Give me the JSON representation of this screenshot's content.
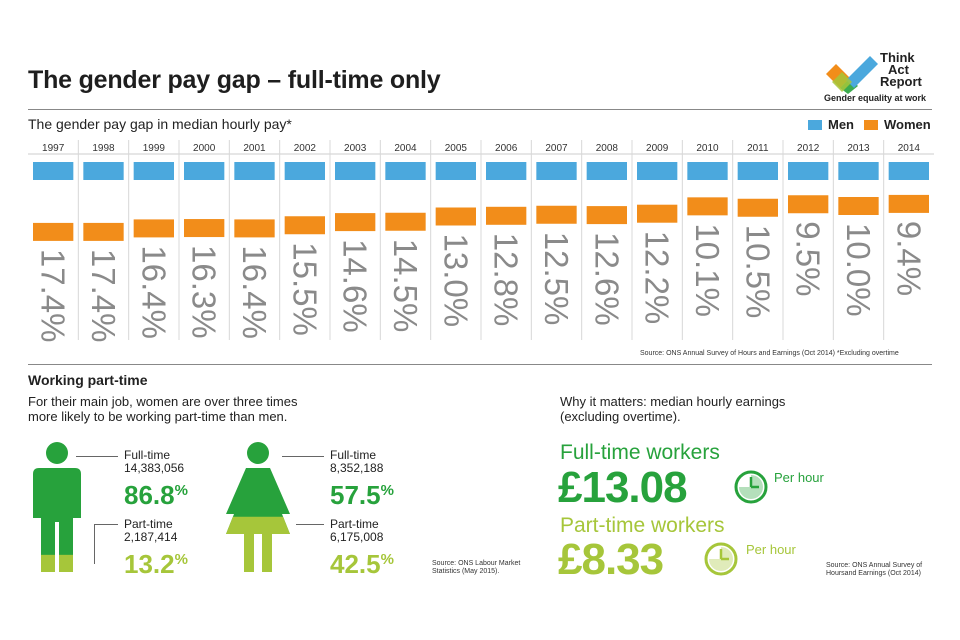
{
  "header": {
    "title": "The gender pay gap – full-time only",
    "logo_lines": [
      "Think",
      "Act",
      "Report"
    ],
    "logo_tagline": "Gender equality at work"
  },
  "colors": {
    "men": "#4ba8dd",
    "women": "#f28d1a",
    "green_dark": "#27a23c",
    "green_light": "#a6c63a",
    "gap_text": "#8a8a8a"
  },
  "chart_data": {
    "type": "bar",
    "title": "The gender pay gap in median hourly pay*",
    "legend": [
      {
        "name": "Men"
      },
      {
        "name": "Women"
      }
    ],
    "legend_position": "top-right",
    "categories": [
      "1997",
      "1998",
      "1999",
      "2000",
      "2001",
      "2002",
      "2003",
      "2004",
      "2005",
      "2006",
      "2007",
      "2008",
      "2009",
      "2010",
      "2011",
      "2012",
      "2013",
      "2014"
    ],
    "series": [
      {
        "name": "Men",
        "values": [
          100,
          100,
          100,
          100,
          100,
          100,
          100,
          100,
          100,
          100,
          100,
          100,
          100,
          100,
          100,
          100,
          100,
          100
        ]
      },
      {
        "name": "Women",
        "values": [
          82.6,
          82.6,
          83.6,
          83.7,
          83.6,
          84.5,
          85.4,
          85.5,
          87.0,
          87.2,
          87.5,
          87.4,
          87.8,
          89.9,
          89.5,
          90.5,
          90.0,
          90.6
        ]
      }
    ],
    "gap_labels": [
      "17.4%",
      "17.4%",
      "16.4%",
      "16.3%",
      "16.4%",
      "15.5%",
      "14.6%",
      "14.5%",
      "13.0%",
      "12.8%",
      "12.5%",
      "12.6%",
      "12.2%",
      "10.1%",
      "10.5%",
      "9.5%",
      "10.0%",
      "9.4%"
    ],
    "source": "Source: ONS Annual Survey of Hours and Earnings (Oct 2014)  *Excluding overtime"
  },
  "part_time": {
    "title": "Working part-time",
    "description": [
      "For their main job, women are over three times",
      "more likely to be working part-time than men."
    ],
    "men": {
      "full_time_label": "Full-time",
      "full_time_count": "14,383,056",
      "full_time_pct": "86.8",
      "full_time_share": 86.8,
      "part_time_label": "Part-time",
      "part_time_count": "2,187,414",
      "part_time_pct": "13.2",
      "part_time_share": 13.2
    },
    "women": {
      "full_time_label": "Full-time",
      "full_time_count": "8,352,188",
      "full_time_pct": "57.5",
      "full_time_share": 57.5,
      "part_time_label": "Part-time",
      "part_time_count": "6,175,008",
      "part_time_pct": "42.5",
      "part_time_share": 42.5
    },
    "pct_symbol": "%",
    "source": [
      "Source: ONS Labour Market",
      "Statistics (May 2015)."
    ]
  },
  "earnings": {
    "intro": [
      "Why it matters: median hourly earnings",
      "(excluding overtime)."
    ],
    "full_time_label": "Full-time workers",
    "full_time_value": "£13.08",
    "part_time_label": "Part-time workers",
    "part_time_value": "£8.33",
    "per_hour": "Per hour",
    "source": [
      "Source: ONS Annual Survey of",
      "Hoursand Earnings (Oct 2014)"
    ]
  }
}
